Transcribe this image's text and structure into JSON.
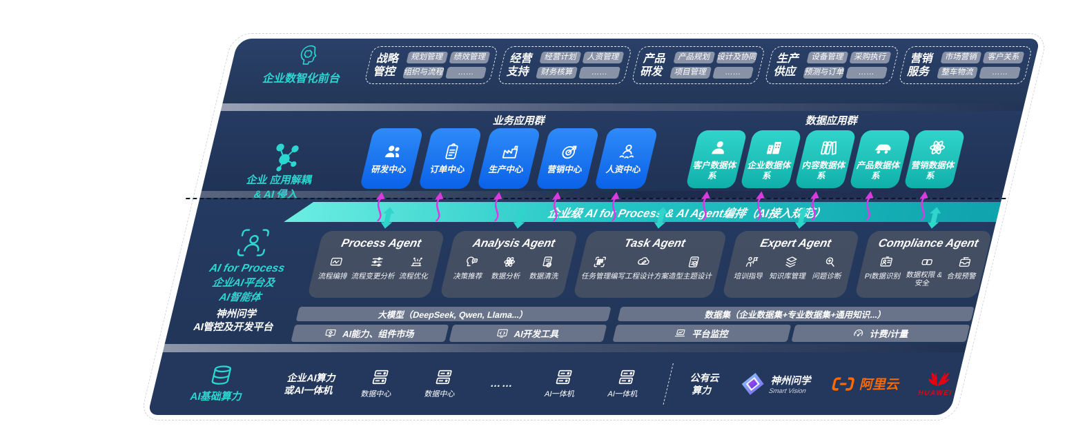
{
  "colors": {
    "panel_navy": "#253a61",
    "accent_teal": "#2bd7d0",
    "tile_blue": "#0f6af0",
    "tile_teal": "#1cc6bd",
    "magenta_arrow": "#da3be0",
    "ai_band_teal": "#2fd0c8",
    "agent_card": "#454f63",
    "chip_gray": "#979fb1",
    "ali_orange": "#ff6a00",
    "huawei_red": "#e60012"
  },
  "front_office": {
    "section_label": "企业数智化前台",
    "groups": [
      {
        "label": "战略管控",
        "chips": [
          "规划管理",
          "绩效管理",
          "组织与流程",
          "……"
        ]
      },
      {
        "label": "经营支持",
        "chips": [
          "经营计划",
          "人资管理",
          "财务核算",
          "……"
        ]
      },
      {
        "label": "产品研发",
        "chips": [
          "产品规划",
          "设计及协同",
          "项目管理",
          "……"
        ]
      },
      {
        "label": "生产供应",
        "chips": [
          "设备管理",
          "采购执行",
          "预测与订单",
          "……"
        ]
      },
      {
        "label": "营销服务",
        "chips": [
          "市场营销",
          "客户关系",
          "整车物流",
          "……"
        ]
      }
    ]
  },
  "decouple": {
    "section_label_line1": "企业 应用解耦",
    "section_label_line2": "& AI 侵入",
    "business_group_title": "业务应用群",
    "data_group_title": "数据应用群",
    "business_tiles": [
      {
        "label": "研发中心",
        "icon": "users-icon"
      },
      {
        "label": "订单中心",
        "icon": "clipboard-icon"
      },
      {
        "label": "生产中心",
        "icon": "factory-icon"
      },
      {
        "label": "营销中心",
        "icon": "target-icon"
      },
      {
        "label": "人资中心",
        "icon": "team-icon"
      }
    ],
    "data_tiles": [
      {
        "label": "客户数据体系",
        "icon": "person-icon"
      },
      {
        "label": "企业数据体系",
        "icon": "building-icon"
      },
      {
        "label": "内容数据体系",
        "icon": "books-icon"
      },
      {
        "label": "产品数据体系",
        "icon": "car-icon"
      },
      {
        "label": "营销数据体系",
        "icon": "atom-icon"
      }
    ]
  },
  "ai_band": {
    "title": "企业级 AI for Process & AI Agent编排（AI接入规范）"
  },
  "process_section": {
    "label_line1": "AI for Process",
    "label_line2": "企业AI平台及",
    "label_line3": "AI智能体"
  },
  "agents": [
    {
      "title": "Process Agent",
      "items": [
        {
          "label": "流程编排",
          "icon": "flow-icon"
        },
        {
          "label": "流程变更分析",
          "icon": "sliders-icon"
        },
        {
          "label": "流程优化",
          "icon": "stage-icon"
        }
      ]
    },
    {
      "title": "Analysis Agent",
      "items": [
        {
          "label": "决策推荐",
          "icon": "chat-head-icon"
        },
        {
          "label": "数据分析",
          "icon": "atom-icon"
        },
        {
          "label": "数据清洗",
          "icon": "doc-clean-icon"
        }
      ]
    },
    {
      "title": "Task Agent",
      "items": [
        {
          "label": "任务管理",
          "icon": "task-grid-icon"
        },
        {
          "label": "编写工程设计方案",
          "icon": "cloud-doc-icon"
        },
        {
          "label": "造型主题设计",
          "icon": "theme-card-icon"
        }
      ]
    },
    {
      "title": "Expert Agent",
      "items": [
        {
          "label": "培训指导",
          "icon": "coach-icon"
        },
        {
          "label": "知识库管理",
          "icon": "layers-icon"
        },
        {
          "label": "问题诊断",
          "icon": "diagnose-icon"
        }
      ]
    },
    {
      "title": "Compliance Agent",
      "items": [
        {
          "label": "PI数据识别",
          "icon": "id-card-icon"
        },
        {
          "label": "数据权限 & 安全",
          "icon": "links-icon"
        },
        {
          "label": "合规预警",
          "icon": "inbox-alert-icon"
        }
      ]
    }
  ],
  "platform": {
    "label_line1": "神州问学",
    "label_line2": "AI管控及开发平台",
    "model_header": "大模型（DeepSeek, Qwen, Llama...）",
    "model_cells": [
      {
        "label": "AI能力、组件市场",
        "icon": "monitor-gear-icon"
      },
      {
        "label": "AI开发工具",
        "icon": "dev-tools-icon"
      }
    ],
    "data_header": "数据集（企业数据集+专业数据集+通用知识...）",
    "data_cells": [
      {
        "label": "平台监控",
        "icon": "laptop-chart-icon"
      },
      {
        "label": "计费/计量",
        "icon": "gauge-icon"
      }
    ]
  },
  "infra": {
    "section_label": "AI基础算力",
    "compute_label_line1": "企业AI算力",
    "compute_label_line2": "或AI一体机",
    "nodes": [
      {
        "label": "数据中心",
        "icon": "server-icon"
      },
      {
        "label": "数据中心",
        "icon": "server-icon"
      },
      {
        "label": "……",
        "icon": "dots"
      },
      {
        "label": "AI一体机",
        "icon": "server-icon"
      },
      {
        "label": "AI一体机",
        "icon": "server-icon"
      }
    ],
    "public_cloud_line1": "公有云",
    "public_cloud_line2": "算力",
    "vendors": [
      {
        "name": "神州问学",
        "sub": "Smart Vision"
      },
      {
        "name": "阿里云"
      },
      {
        "name": "HUAWEI"
      }
    ]
  }
}
